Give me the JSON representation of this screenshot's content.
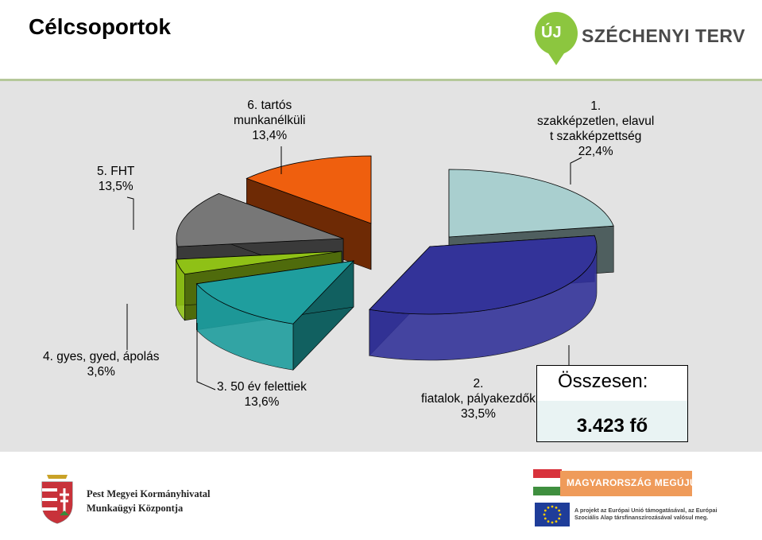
{
  "title": "Célcsoportok",
  "logo_top": {
    "text": "SZÉCHENYI TERV",
    "pin_text": "ÚJ"
  },
  "chart_data": {
    "type": "pie",
    "variant": "3d-exploded",
    "slices": [
      {
        "id": 1,
        "label_lines": [
          "1.",
          "szakképzetlen, elavul",
          "t szakképzettség",
          "22,4%"
        ],
        "value": 22.4,
        "color": "#a9cfcf",
        "side_color": "#4f5f5f"
      },
      {
        "id": 2,
        "label_lines": [
          "2.",
          "fiatalok, pályakezdők",
          "33,5%"
        ],
        "value": 33.5,
        "color": "#333399",
        "side_color": "#1f1f66"
      },
      {
        "id": 3,
        "label_lines": [
          "3. 50 év felettiek",
          "13,6%"
        ],
        "value": 13.6,
        "color": "#1f9e9e",
        "side_color": "#116060"
      },
      {
        "id": 4,
        "label_lines": [
          "4. gyes, gyed, ápolás",
          "3,6%"
        ],
        "value": 3.6,
        "color": "#8fc116",
        "side_color": "#4f6b0c"
      },
      {
        "id": 5,
        "label_lines": [
          "5. FHT",
          "13,5%"
        ],
        "value": 13.5,
        "color": "#777777",
        "side_color": "#3a3a3a"
      },
      {
        "id": 6,
        "label_lines": [
          "6. tartós",
          "munkanélküli",
          "13,4%"
        ],
        "value": 13.4,
        "color": "#ef5f0e",
        "side_color": "#6e2a05"
      }
    ]
  },
  "total": {
    "label": "Összesen:",
    "value": "3.423 fő"
  },
  "footer": {
    "org_line1": "Pest Megyei Kormányhivatal",
    "org_line2": "Munkaügyi Központja",
    "banner": "MAGYARORSZÁG MEGÚJUL",
    "eu_line1": "A projekt az Európai Unió támogatásával, az Európai",
    "eu_line2": "Szociális Alap társfinanszírozásával valósul meg."
  }
}
